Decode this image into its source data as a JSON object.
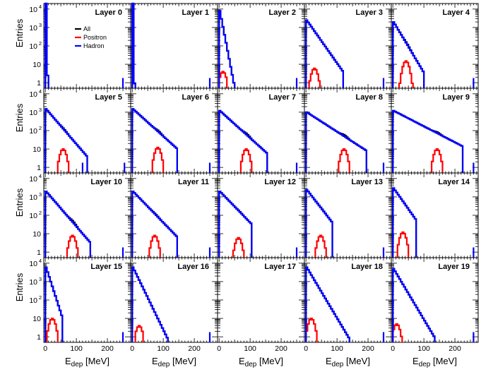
{
  "chart_data": {
    "type": "histogram-grid",
    "xlabel_main": "E",
    "xlabel_sub": "dep",
    "xlabel_unit": "[MeV]",
    "ylabel": "Entries",
    "x_range": [
      -5,
      275
    ],
    "y_scale": "log",
    "y_range": [
      0.5,
      20000
    ],
    "x_ticks": [
      "0",
      "100",
      "200"
    ],
    "x_tick_values": [
      0,
      100,
      200
    ],
    "y_ticks": [
      {
        "value": 1,
        "label": "1"
      },
      {
        "value": 10,
        "label": "10"
      },
      {
        "value": 100,
        "label": "10",
        "exp": "2"
      },
      {
        "value": 1000,
        "label": "10",
        "exp": "3"
      },
      {
        "value": 10000,
        "label": "10",
        "exp": "4"
      }
    ],
    "colors": {
      "all": "#000000",
      "positron": "#ff0000",
      "hadron": "#0000ff"
    },
    "legend": [
      {
        "key": "all",
        "label": "All"
      },
      {
        "key": "positron",
        "label": "Positron"
      },
      {
        "key": "hadron",
        "label": "Hadron"
      }
    ],
    "layers": [
      {
        "title": "Layer 0",
        "hadron": {
          "start": 20000,
          "slope": 1.8,
          "end": 8
        },
        "positron": {
          "peak": 0,
          "height": 0
        },
        "outliers": [
          250
        ]
      },
      {
        "title": "Layer 1",
        "hadron": {
          "start": 20000,
          "slope": 2.0,
          "end": 10
        },
        "positron": {
          "peak": 0,
          "height": 0
        },
        "outliers": [
          250
        ]
      },
      {
        "title": "Layer 2",
        "hadron": {
          "start": 8000,
          "slope": 0.2,
          "end": 60
        },
        "positron": {
          "peak": 10,
          "height": 4
        },
        "outliers": [
          250
        ]
      },
      {
        "title": "Layer 3",
        "hadron": {
          "start": 2500,
          "slope": 0.055,
          "end": 115
        },
        "positron": {
          "peak": 25,
          "height": 6
        },
        "outliers": [
          250
        ]
      },
      {
        "title": "Layer 4",
        "hadron": {
          "start": 2000,
          "slope": 0.065,
          "end": 95
        },
        "positron": {
          "peak": 40,
          "height": 15
        },
        "outliers": [
          260
        ]
      },
      {
        "title": "Layer 5",
        "hadron": {
          "start": 1500,
          "slope": 0.045,
          "end": 130
        },
        "positron": {
          "peak": 55,
          "height": 10
        },
        "outliers": [
          120,
          255
        ]
      },
      {
        "title": "Layer 6",
        "hadron": {
          "start": 1500,
          "slope": 0.035,
          "end": 140
        },
        "positron": {
          "peak": 80,
          "height": 12
        },
        "outliers": [
          250
        ]
      },
      {
        "title": "Layer 7",
        "hadron": {
          "start": 1200,
          "slope": 0.035,
          "end": 150
        },
        "positron": {
          "peak": 85,
          "height": 10
        },
        "outliers": [
          250
        ]
      },
      {
        "title": "Layer 8",
        "hadron": {
          "start": 1000,
          "slope": 0.025,
          "end": 190
        },
        "positron": {
          "peak": 120,
          "height": 10
        },
        "outliers": [
          250
        ]
      },
      {
        "title": "Layer 9",
        "hadron": {
          "start": 1200,
          "slope": 0.02,
          "end": 220
        },
        "positron": {
          "peak": 140,
          "height": 10
        },
        "outliers": [
          260
        ]
      },
      {
        "title": "Layer 10",
        "hadron": {
          "start": 2000,
          "slope": 0.045,
          "end": 140
        },
        "positron": {
          "peak": 85,
          "height": 8
        },
        "outliers": [
          250
        ]
      },
      {
        "title": "Layer 11",
        "hadron": {
          "start": 2000,
          "slope": 0.04,
          "end": 140
        },
        "positron": {
          "peak": 70,
          "height": 8
        },
        "outliers": [
          250
        ]
      },
      {
        "title": "Layer 12",
        "hadron": {
          "start": 2000,
          "slope": 0.04,
          "end": 100
        },
        "positron": {
          "peak": 60,
          "height": 6
        },
        "outliers": [
          250
        ]
      },
      {
        "title": "Layer 13",
        "hadron": {
          "start": 2500,
          "slope": 0.05,
          "end": 80
        },
        "positron": {
          "peak": 45,
          "height": 8
        },
        "outliers": [
          250
        ]
      },
      {
        "title": "Layer 14",
        "hadron": {
          "start": 3000,
          "slope": 0.055,
          "end": 70
        },
        "positron": {
          "peak": 30,
          "height": 12
        },
        "outliers": [
          260
        ]
      },
      {
        "title": "Layer 15",
        "hadron": {
          "start": 6000,
          "slope": 0.12,
          "end": 50
        },
        "positron": {
          "peak": 20,
          "height": 10
        },
        "outliers": [
          250
        ]
      },
      {
        "title": "Layer 16",
        "hadron": {
          "start": 6000,
          "slope": 0.08,
          "end": 120
        },
        "positron": {
          "peak": 20,
          "height": 4
        },
        "outliers": [
          250
        ]
      },
      {
        "title": "Layer 17",
        "hadron": {
          "start": 0,
          "slope": 0,
          "end": 0
        },
        "positron": {
          "peak": 0,
          "height": 0
        },
        "outliers": []
      },
      {
        "title": "Layer 18",
        "hadron": {
          "start": 6000,
          "slope": 0.065,
          "end": 140
        },
        "positron": {
          "peak": 15,
          "height": 10
        },
        "outliers": [
          250
        ]
      },
      {
        "title": "Layer 19",
        "hadron": {
          "start": 5000,
          "slope": 0.065,
          "end": 130
        },
        "positron": {
          "peak": 10,
          "height": 5
        },
        "outliers": [
          260
        ]
      }
    ]
  }
}
